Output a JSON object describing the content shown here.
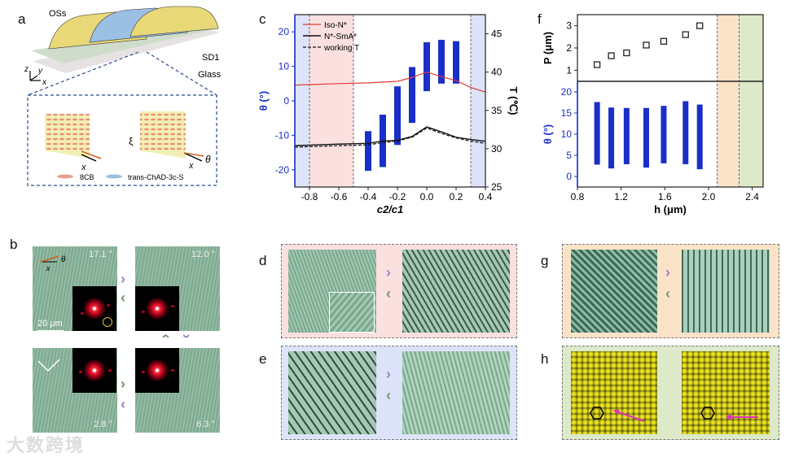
{
  "panel_labels": {
    "a": "a",
    "b": "b",
    "c": "c",
    "d": "d",
    "e": "e",
    "f": "f",
    "g": "g",
    "h": "h"
  },
  "panel_a": {
    "oss": "OSs",
    "sd1": "SD1",
    "glass": "Glass",
    "axis_z": "z",
    "axis_y": "y",
    "axis_x": "x",
    "xi": "ξ",
    "theta": "θ",
    "x1": "x",
    "x2": "x",
    "legend_8cb": "8CB",
    "legend_trans": "trans-ChAD-3c-S"
  },
  "panel_b": {
    "angles": [
      "17.1 °",
      "12.0 °",
      "2.8 °",
      "6.3 °"
    ],
    "scale_bar": "20 μm",
    "theta": "θ",
    "x": "x"
  },
  "watermark": "大数跨境",
  "colors": {
    "bar": "#1a2ec8",
    "iso": "#e03a3a",
    "blue_region": "#dde3f8",
    "pink_region": "#fbe0e0",
    "orange_region": "#fbe3c8",
    "green_region": "#dde9c8"
  },
  "chart_data": [
    {
      "type": "bar",
      "title": "c",
      "xlabel": "c2/c1",
      "ylabel": "θ (°)",
      "y2label": "T (℃)",
      "xlim": [
        -0.9,
        0.4
      ],
      "ylim": [
        -25,
        25
      ],
      "y2lim": [
        25,
        47.5
      ],
      "xticks": [
        "-0.8",
        "-0.6",
        "-0.4",
        "-0.2",
        "0.0",
        "0.2",
        "0.4"
      ],
      "yticks": [
        "-20",
        "-10",
        "0",
        "10",
        "20"
      ],
      "y2ticks": [
        "25",
        "30",
        "35",
        "40",
        "45"
      ],
      "legend": [
        "Iso-N*",
        "N*-SmA*",
        "working T"
      ],
      "legend_position": "top-left",
      "theta_ranges": [
        {
          "x": -0.4,
          "low": -20.3,
          "high": -8.8
        },
        {
          "x": -0.3,
          "low": -19.2,
          "high": -4
        },
        {
          "x": -0.2,
          "low": -12.8,
          "high": 4.2
        },
        {
          "x": -0.1,
          "low": -6.4,
          "high": 9.8
        },
        {
          "x": 0.0,
          "low": 2.8,
          "high": 17
        },
        {
          "x": 0.1,
          "low": 5,
          "high": 17.7
        },
        {
          "x": 0.2,
          "low": 5,
          "high": 17.3
        }
      ],
      "series": [
        {
          "name": "Iso-N*",
          "x": [
            -0.9,
            -0.6,
            -0.4,
            -0.2,
            -0.1,
            0,
            0.1,
            0.2,
            0.3,
            0.4
          ],
          "T": [
            38.3,
            38.5,
            38.6,
            38.8,
            39.3,
            40.0,
            39.4,
            38.9,
            38.0,
            37.4
          ]
        },
        {
          "name": "N*-SmA*",
          "x": [
            -0.9,
            -0.6,
            -0.4,
            -0.3,
            -0.2,
            -0.1,
            0,
            0.1,
            0.2,
            0.3,
            0.4
          ],
          "T": [
            30.4,
            30.6,
            30.7,
            31.0,
            31.1,
            31.6,
            32.85,
            32.2,
            31.5,
            31.2,
            30.97
          ]
        },
        {
          "name": "working T",
          "x": [
            -0.9,
            -0.6,
            -0.4,
            -0.3,
            -0.2,
            -0.1,
            0,
            0.1,
            0.2,
            0.3,
            0.4
          ],
          "T": [
            30.2,
            30.4,
            30.5,
            30.8,
            31.0,
            31.5,
            32.7,
            32.0,
            31.4,
            31.0,
            30.7
          ]
        }
      ],
      "regions": [
        {
          "from": -0.9,
          "to": -0.8,
          "color": "blue"
        },
        {
          "from": -0.8,
          "to": -0.5,
          "color": "pink"
        },
        {
          "from": 0.3,
          "to": 0.4,
          "color": "blue"
        }
      ],
      "dashed_lines": [
        -0.8,
        -0.5,
        0.3
      ]
    },
    {
      "type": "scatter",
      "title": "f",
      "xlabel": "h (μm)",
      "ylabel_top": "P (μm)",
      "ylabel_bottom": "θ (°)",
      "xlim": [
        0.8,
        2.5
      ],
      "ylim_top": [
        0.5,
        3.5
      ],
      "ylim_bottom": [
        -2.5,
        22.5
      ],
      "xticks": [
        "0.8",
        "1.2",
        "1.6",
        "2.0",
        "2.4"
      ],
      "yticks_top": [
        "1",
        "2",
        "3"
      ],
      "yticks_bottom": [
        "0",
        "5",
        "10",
        "15",
        "20"
      ],
      "pitch": {
        "h": [
          0.98,
          1.11,
          1.25,
          1.43,
          1.59,
          1.79,
          1.92
        ],
        "P": [
          1.25,
          1.65,
          1.78,
          2.13,
          2.3,
          2.6,
          3.0
        ]
      },
      "theta_ranges": [
        {
          "h": 0.98,
          "low": 2.8,
          "high": 17.6
        },
        {
          "h": 1.11,
          "low": 1.9,
          "high": 16.3
        },
        {
          "h": 1.25,
          "low": 2.9,
          "high": 16.2
        },
        {
          "h": 1.43,
          "low": 2.1,
          "high": 16.2
        },
        {
          "h": 1.59,
          "low": 3.1,
          "high": 16.7
        },
        {
          "h": 1.79,
          "low": 2.9,
          "high": 17.8
        },
        {
          "h": 1.92,
          "low": 1.7,
          "high": 17.0
        }
      ],
      "regions": [
        {
          "from": 2.08,
          "to": 2.28,
          "color": "orange"
        },
        {
          "from": 2.28,
          "to": 2.5,
          "color": "green"
        }
      ],
      "dashed_lines": [
        2.08,
        2.28
      ]
    }
  ]
}
